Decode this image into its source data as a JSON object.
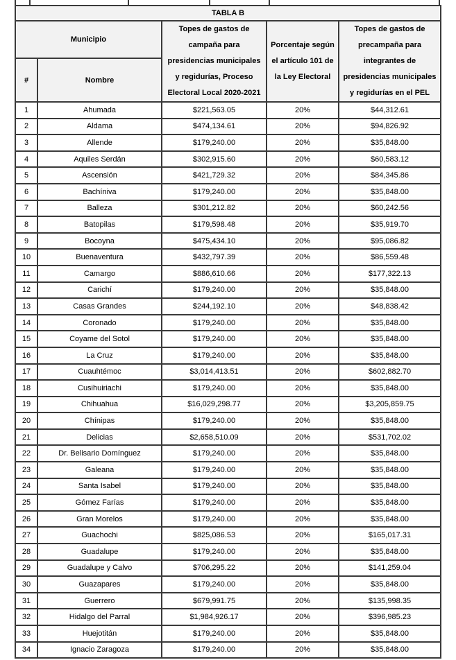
{
  "page": {
    "background": "#ffffff",
    "border_color": "#3a3a3a",
    "header_fill": "#f2f2f2"
  },
  "table": {
    "title": "TABLA B",
    "header": {
      "municipio": "Municipio",
      "num": "#",
      "nombre": "Nombre",
      "campana": "Topes de gastos de\ncampaña para\npresidencias municipales\ny regidurías, Proceso\nElectoral Local 2020-2021",
      "porcentaje": "Porcentaje según\nel artículo 101 de\nla Ley Electoral",
      "precampana": "Topes de gastos de\nprecampaña para\nintegrantes de\npresidencias municipales\ny regidurías en el PEL"
    },
    "rows": [
      {
        "num": "1",
        "nombre": "Ahumada",
        "campana": "$221,563.05",
        "porcentaje": "20%",
        "precampana": "$44,312.61"
      },
      {
        "num": "2",
        "nombre": "Aldama",
        "campana": "$474,134.61",
        "porcentaje": "20%",
        "precampana": "$94,826.92"
      },
      {
        "num": "3",
        "nombre": "Allende",
        "campana": "$179,240.00",
        "porcentaje": "20%",
        "precampana": "$35,848.00"
      },
      {
        "num": "4",
        "nombre": "Aquiles Serdán",
        "campana": "$302,915.60",
        "porcentaje": "20%",
        "precampana": "$60,583.12"
      },
      {
        "num": "5",
        "nombre": "Ascensión",
        "campana": "$421,729.32",
        "porcentaje": "20%",
        "precampana": "$84,345.86"
      },
      {
        "num": "6",
        "nombre": "Bachíniva",
        "campana": "$179,240.00",
        "porcentaje": "20%",
        "precampana": "$35,848.00"
      },
      {
        "num": "7",
        "nombre": "Balleza",
        "campana": "$301,212.82",
        "porcentaje": "20%",
        "precampana": "$60,242.56"
      },
      {
        "num": "8",
        "nombre": "Batopilas",
        "campana": "$179,598.48",
        "porcentaje": "20%",
        "precampana": "$35,919.70"
      },
      {
        "num": "9",
        "nombre": "Bocoyna",
        "campana": "$475,434.10",
        "porcentaje": "20%",
        "precampana": "$95,086.82"
      },
      {
        "num": "10",
        "nombre": "Buenaventura",
        "campana": "$432,797.39",
        "porcentaje": "20%",
        "precampana": "$86,559.48"
      },
      {
        "num": "11",
        "nombre": "Camargo",
        "campana": "$886,610.66",
        "porcentaje": "20%",
        "precampana": "$177,322.13"
      },
      {
        "num": "12",
        "nombre": "Carichí",
        "campana": "$179,240.00",
        "porcentaje": "20%",
        "precampana": "$35,848.00"
      },
      {
        "num": "13",
        "nombre": "Casas Grandes",
        "campana": "$244,192.10",
        "porcentaje": "20%",
        "precampana": "$48,838.42"
      },
      {
        "num": "14",
        "nombre": "Coronado",
        "campana": "$179,240.00",
        "porcentaje": "20%",
        "precampana": "$35,848.00"
      },
      {
        "num": "15",
        "nombre": "Coyame del Sotol",
        "campana": "$179,240.00",
        "porcentaje": "20%",
        "precampana": "$35,848.00"
      },
      {
        "num": "16",
        "nombre": "La Cruz",
        "campana": "$179,240.00",
        "porcentaje": "20%",
        "precampana": "$35,848.00"
      },
      {
        "num": "17",
        "nombre": "Cuauhtémoc",
        "campana": "$3,014,413.51",
        "porcentaje": "20%",
        "precampana": "$602,882.70"
      },
      {
        "num": "18",
        "nombre": "Cusihuiriachi",
        "campana": "$179,240.00",
        "porcentaje": "20%",
        "precampana": "$35,848.00"
      },
      {
        "num": "19",
        "nombre": "Chihuahua",
        "campana": "$16,029,298.77",
        "porcentaje": "20%",
        "precampana": "$3,205,859.75"
      },
      {
        "num": "20",
        "nombre": "Chínipas",
        "campana": "$179,240.00",
        "porcentaje": "20%",
        "precampana": "$35,848.00"
      },
      {
        "num": "21",
        "nombre": "Delicias",
        "campana": "$2,658,510.09",
        "porcentaje": "20%",
        "precampana": "$531,702.02"
      },
      {
        "num": "22",
        "nombre": "Dr. Belisario Domínguez",
        "campana": "$179,240.00",
        "porcentaje": "20%",
        "precampana": "$35,848.00"
      },
      {
        "num": "23",
        "nombre": "Galeana",
        "campana": "$179,240.00",
        "porcentaje": "20%",
        "precampana": "$35,848.00"
      },
      {
        "num": "24",
        "nombre": "Santa Isabel",
        "campana": "$179,240.00",
        "porcentaje": "20%",
        "precampana": "$35,848.00"
      },
      {
        "num": "25",
        "nombre": "Gómez Farías",
        "campana": "$179,240.00",
        "porcentaje": "20%",
        "precampana": "$35,848.00"
      },
      {
        "num": "26",
        "nombre": "Gran Morelos",
        "campana": "$179,240.00",
        "porcentaje": "20%",
        "precampana": "$35,848.00"
      },
      {
        "num": "27",
        "nombre": "Guachochi",
        "campana": "$825,086.53",
        "porcentaje": "20%",
        "precampana": "$165,017.31"
      },
      {
        "num": "28",
        "nombre": "Guadalupe",
        "campana": "$179,240.00",
        "porcentaje": "20%",
        "precampana": "$35,848.00"
      },
      {
        "num": "29",
        "nombre": "Guadalupe y Calvo",
        "campana": "$706,295.22",
        "porcentaje": "20%",
        "precampana": "$141,259.04"
      },
      {
        "num": "30",
        "nombre": "Guazapares",
        "campana": "$179,240.00",
        "porcentaje": "20%",
        "precampana": "$35,848.00"
      },
      {
        "num": "31",
        "nombre": "Guerrero",
        "campana": "$679,991.75",
        "porcentaje": "20%",
        "precampana": "$135,998.35"
      },
      {
        "num": "32",
        "nombre": "Hidalgo del Parral",
        "campana": "$1,984,926.17",
        "porcentaje": "20%",
        "precampana": "$396,985.23"
      },
      {
        "num": "33",
        "nombre": "Huejotitán",
        "campana": "$179,240.00",
        "porcentaje": "20%",
        "precampana": "$35,848.00"
      },
      {
        "num": "34",
        "nombre": "Ignacio Zaragoza",
        "campana": "$179,240.00",
        "porcentaje": "20%",
        "precampana": "$35,848.00"
      }
    ]
  }
}
